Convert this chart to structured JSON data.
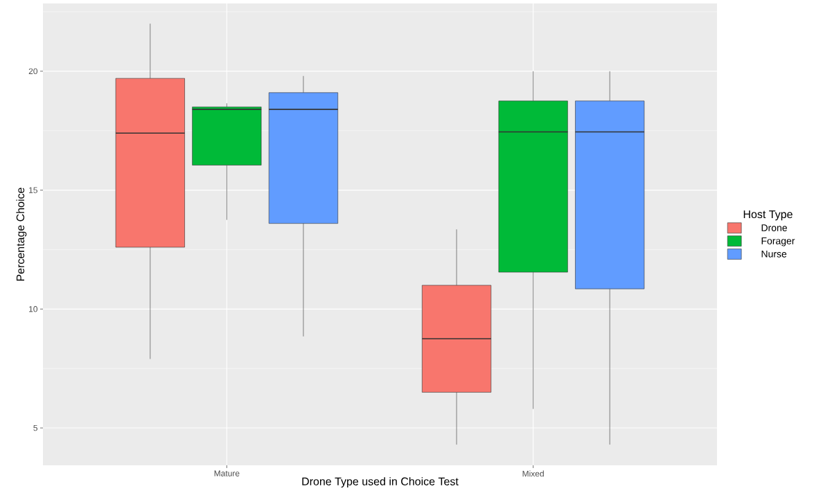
{
  "chart_data": {
    "type": "box",
    "xlabel": "Drone Type used in Choice Test",
    "ylabel": "Percentage Choice",
    "legend_title": "Host Type",
    "categories": [
      "Mature",
      "Mixed"
    ],
    "ylim": [
      3.43,
      22.85
    ],
    "yticks": [
      5,
      10,
      15,
      20
    ],
    "grid": true,
    "legend": "right",
    "series": [
      {
        "name": "Drone",
        "color": "#f8766d",
        "boxes": [
          {
            "low": 7.9,
            "q1": 12.6,
            "median": 17.4,
            "q3": 19.7,
            "high": 22.0
          },
          {
            "low": 4.3,
            "q1": 6.5,
            "median": 8.75,
            "q3": 11.0,
            "high": 13.35
          }
        ]
      },
      {
        "name": "Forager",
        "color": "#00ba38",
        "boxes": [
          {
            "low": 13.75,
            "q1": 16.05,
            "median": 18.4,
            "q3": 18.5,
            "high": 18.65
          },
          {
            "low": 5.8,
            "q1": 11.55,
            "median": 17.45,
            "q3": 18.75,
            "high": 20.0
          }
        ]
      },
      {
        "name": "Nurse",
        "color": "#619cff",
        "boxes": [
          {
            "low": 8.85,
            "q1": 13.6,
            "median": 18.4,
            "q3": 19.1,
            "high": 19.8
          },
          {
            "low": 4.3,
            "q1": 10.85,
            "median": 17.45,
            "q3": 18.75,
            "high": 20.0
          }
        ]
      }
    ]
  }
}
